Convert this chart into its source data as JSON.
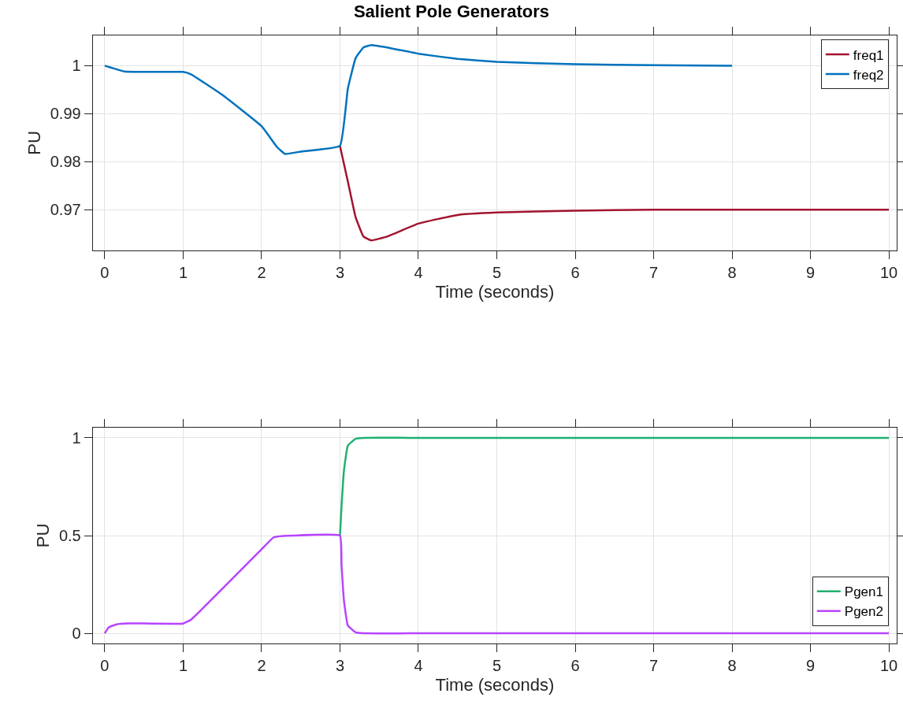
{
  "chart_data": [
    {
      "type": "line",
      "title": "Salient Pole Generators",
      "xlabel": "Time (seconds)",
      "ylabel": "PU",
      "x": [
        0,
        0.1,
        0.25,
        0.5,
        1.0,
        1.1,
        1.5,
        2.0,
        2.2,
        2.3,
        2.5,
        3.0,
        3.1,
        3.2,
        3.3,
        3.4,
        3.6,
        4.0,
        4.5,
        5,
        6,
        7,
        8,
        9,
        10
      ],
      "series": [
        {
          "name": "freq1",
          "color": "#a2142f",
          "values": [
            null,
            null,
            null,
            null,
            null,
            null,
            null,
            null,
            null,
            null,
            null,
            0.9833,
            0.9759,
            0.9684,
            0.9644,
            0.9636,
            0.9644,
            0.9671,
            0.9689,
            0.9694,
            0.9698,
            0.97,
            0.97,
            0.97,
            0.97
          ]
        },
        {
          "name": "freq2",
          "color": "#0072bd",
          "values": [
            1.0,
            0.9995,
            0.9988,
            0.9987,
            0.9987,
            0.9982,
            0.9939,
            0.9874,
            0.983,
            0.9816,
            0.9821,
            0.9833,
            0.9952,
            1.0016,
            1.0038,
            1.0043,
            1.0038,
            1.0025,
            1.0014,
            1.0008,
            1.0003,
            1.0001,
            1.0,
            null,
            null
          ]
        }
      ],
      "xlim": [
        -0.15,
        10.1
      ],
      "xticks": [
        0,
        1,
        2,
        3,
        4,
        5,
        6,
        7,
        8,
        9,
        10
      ],
      "ylim": [
        0.9615,
        1.0063
      ],
      "yticks": [
        0.97,
        0.98,
        0.99,
        1
      ],
      "grid": true,
      "legend": "top right"
    },
    {
      "type": "line",
      "xlabel": "Time (seconds)",
      "ylabel": "PU",
      "x": [
        0,
        0.05,
        0.15,
        0.3,
        1.0,
        1.1,
        2.0,
        2.15,
        2.2,
        2.4,
        3.0,
        3.02,
        3.05,
        3.1,
        3.2,
        3.3,
        4,
        5,
        6,
        7,
        8,
        9,
        10
      ],
      "series": [
        {
          "name": "Pgen1",
          "color": "#20b070",
          "values": [
            null,
            null,
            null,
            null,
            null,
            null,
            null,
            null,
            null,
            null,
            0.5,
            0.65,
            0.83,
            0.96,
            0.995,
            1,
            1,
            1,
            1,
            1,
            1,
            1,
            1
          ]
        },
        {
          "name": "Pgen2",
          "color": "#b844ff",
          "values": [
            0,
            0.03,
            0.046,
            0.051,
            0.05,
            0.07,
            0.43,
            0.49,
            0.495,
            0.5,
            0.5,
            0.35,
            0.17,
            0.04,
            0.005,
            0,
            0,
            0,
            0,
            0,
            0,
            0,
            0
          ]
        }
      ],
      "xlim": [
        -0.15,
        10.1
      ],
      "xticks": [
        0,
        1,
        2,
        3,
        4,
        5,
        6,
        7,
        8,
        9,
        10
      ],
      "ylim": [
        -0.052,
        1.052
      ],
      "yticks": [
        0,
        0.5,
        1
      ],
      "grid": true,
      "legend": "bottom right"
    }
  ]
}
